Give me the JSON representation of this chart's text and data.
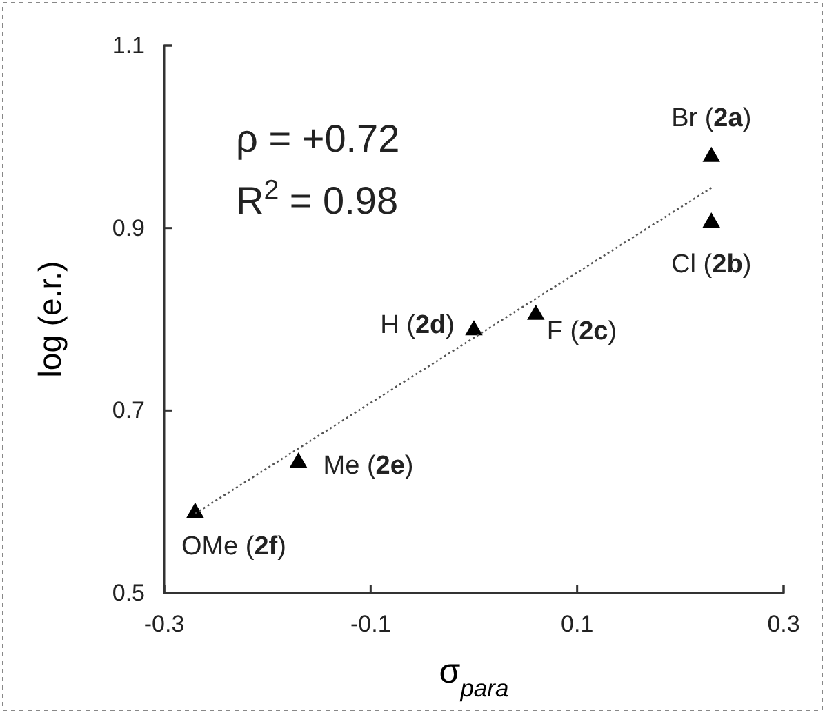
{
  "chart_data": {
    "type": "scatter",
    "xlabel": "σ$_{para}$",
    "ylabel": "log (e.r.)",
    "xlim": [
      -0.3,
      0.3
    ],
    "xticks": [
      -0.3,
      -0.1,
      0.1,
      0.3
    ],
    "ylim": [
      0.5,
      1.1
    ],
    "yticks": [
      0.5,
      0.7,
      0.9,
      1.1
    ],
    "marker": "triangle",
    "grid": false,
    "series": [
      {
        "color": "#000000",
        "x": [
          0.23,
          0.23,
          0.06,
          0,
          -0.17,
          -0.27
        ],
        "values": [
          0.978,
          0.906,
          0.805,
          0.788,
          0.643,
          0.588
        ]
      },
      {
        "type": "line",
        "color": "#555555",
        "line_style": "dotted",
        "marker": "none",
        "x": [
          -0.27,
          0.23
        ],
        "values": [
          0.587,
          0.944
        ]
      }
    ],
    "annotations": [
      "ρ = +0.72",
      "R$^{2}$ = 0.98",
      {
        "text": "Br (2a)",
        "x": 0.23,
        "y": 0.978
      },
      {
        "text": "Cl (2b)",
        "x": 0.23,
        "y": 0.906
      },
      {
        "text": "F (2c)",
        "x": 0.06,
        "y": 0.805
      },
      {
        "text": "H (2d)",
        "x": 0,
        "y": 0.788
      },
      {
        "text": "Me (2e)",
        "x": -0.17,
        "y": 0.643
      },
      {
        "text": "OMe (2f)",
        "x": -0.27,
        "y": 0.588
      }
    ]
  }
}
